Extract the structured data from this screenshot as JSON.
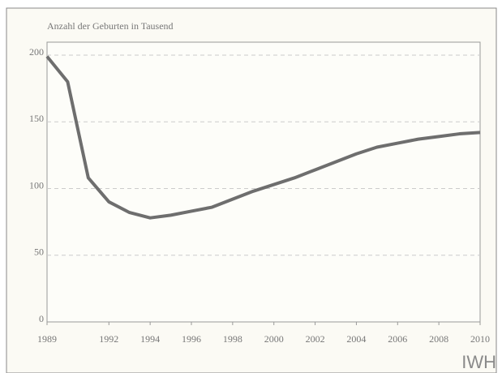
{
  "chart_data": {
    "type": "line",
    "title": "Anzahl der Geburten in Tausend",
    "source": "IWH",
    "x": [
      1989,
      1990,
      1991,
      1992,
      1993,
      1994,
      1995,
      1996,
      1997,
      1998,
      1999,
      2000,
      2001,
      2002,
      2003,
      2004,
      2005,
      2006,
      2007,
      2008,
      2009,
      2010
    ],
    "series": [
      {
        "color": "#6e6e6e",
        "values": [
          199,
          180,
          108,
          90,
          82,
          78,
          80,
          83,
          86,
          92,
          98,
          103,
          108,
          114,
          120,
          126,
          131,
          134,
          137,
          139,
          141,
          142
        ]
      }
    ],
    "xlim": [
      1989,
      2010
    ],
    "xticks": [
      1989,
      1992,
      1994,
      1996,
      1998,
      2000,
      2002,
      2004,
      2006,
      2008,
      2010
    ],
    "ylim": [
      0,
      200
    ],
    "yticks": [
      0,
      50,
      100,
      150,
      200
    ],
    "grid": true
  }
}
